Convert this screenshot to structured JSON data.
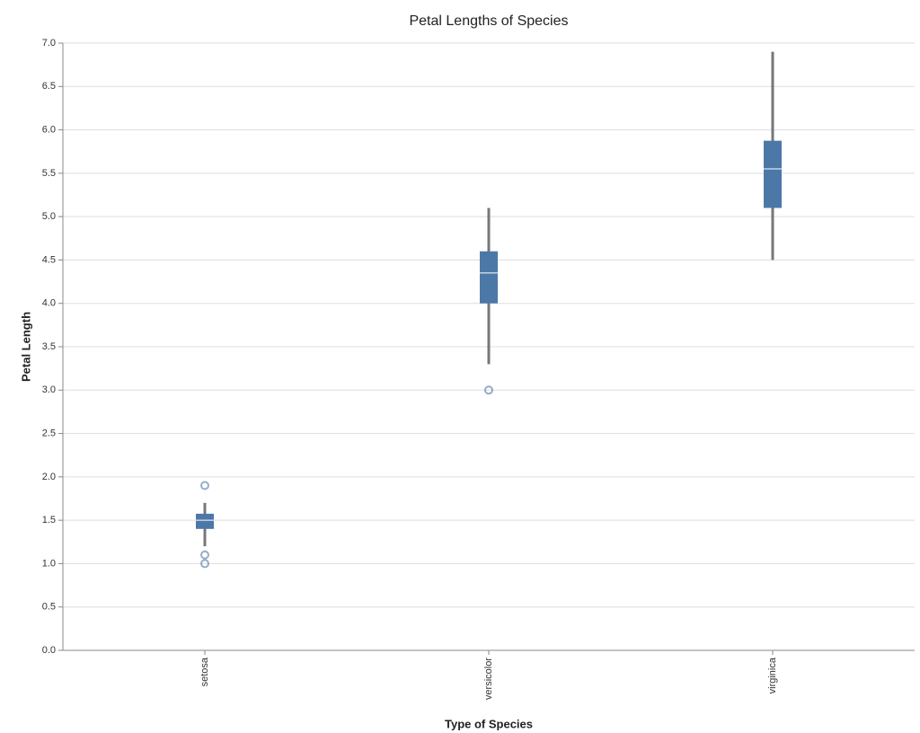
{
  "chart_data": {
    "type": "boxplot",
    "title": "Petal Lengths of Species",
    "x_label": "Type of Species",
    "y_label": "Petal Length",
    "categories": [
      "setosa",
      "versicolor",
      "virginica"
    ],
    "boxes": [
      {
        "min": 1.2,
        "q1": 1.4,
        "median": 1.5,
        "q3": 1.575,
        "max": 1.7,
        "outliers": [
          1.0,
          1.1,
          1.9
        ]
      },
      {
        "min": 3.3,
        "q1": 4.0,
        "median": 4.35,
        "q3": 4.6,
        "max": 5.1,
        "outliers": [
          3.0
        ]
      },
      {
        "min": 4.5,
        "q1": 5.1,
        "median": 5.55,
        "q3": 5.875,
        "max": 6.9,
        "outliers": []
      }
    ],
    "color": "#4c78a8",
    "whisker_color": "#777777",
    "ylim": [
      0,
      7
    ],
    "yticks": [
      {
        "value": 0,
        "label": "0.0"
      },
      0.5,
      {
        "value": 1,
        "label": "1.0"
      },
      1.5,
      {
        "value": 2,
        "label": "2.0"
      },
      2.5,
      {
        "value": 3,
        "label": "3.0"
      },
      3.5,
      {
        "value": 4,
        "label": "4.0"
      },
      4.5,
      {
        "value": 5,
        "label": "5.0"
      },
      5.5,
      {
        "value": 6,
        "label": "6.0"
      },
      6.5,
      {
        "value": 7,
        "label": "7.0"
      }
    ],
    "grid": true
  }
}
